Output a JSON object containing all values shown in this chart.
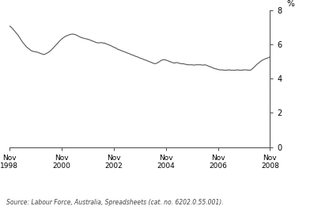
{
  "title": "",
  "ylabel": "%",
  "ylim": [
    0,
    8
  ],
  "yticks": [
    0,
    2,
    4,
    6,
    8
  ],
  "source_text": "Source: Labour Force, Australia, Spreadsheets (cat. no. 6202.0.55.001).",
  "line_color": "#555555",
  "line_width": 0.8,
  "background_color": "#ffffff",
  "x_tick_years": [
    1998,
    2000,
    2002,
    2004,
    2006,
    2008
  ],
  "data": [
    [
      1998,
      11,
      7.1
    ],
    [
      1998,
      12,
      7.0
    ],
    [
      1999,
      1,
      6.85
    ],
    [
      1999,
      2,
      6.7
    ],
    [
      1999,
      3,
      6.55
    ],
    [
      1999,
      4,
      6.35
    ],
    [
      1999,
      5,
      6.15
    ],
    [
      1999,
      6,
      6.0
    ],
    [
      1999,
      7,
      5.85
    ],
    [
      1999,
      8,
      5.75
    ],
    [
      1999,
      9,
      5.65
    ],
    [
      1999,
      10,
      5.6
    ],
    [
      1999,
      11,
      5.58
    ],
    [
      1999,
      12,
      5.55
    ],
    [
      2000,
      1,
      5.5
    ],
    [
      2000,
      2,
      5.45
    ],
    [
      2000,
      3,
      5.42
    ],
    [
      2000,
      4,
      5.48
    ],
    [
      2000,
      5,
      5.55
    ],
    [
      2000,
      6,
      5.65
    ],
    [
      2000,
      7,
      5.78
    ],
    [
      2000,
      8,
      5.92
    ],
    [
      2000,
      9,
      6.05
    ],
    [
      2000,
      10,
      6.2
    ],
    [
      2000,
      11,
      6.32
    ],
    [
      2000,
      12,
      6.42
    ],
    [
      2001,
      1,
      6.5
    ],
    [
      2001,
      2,
      6.55
    ],
    [
      2001,
      3,
      6.6
    ],
    [
      2001,
      4,
      6.62
    ],
    [
      2001,
      5,
      6.6
    ],
    [
      2001,
      6,
      6.55
    ],
    [
      2001,
      7,
      6.48
    ],
    [
      2001,
      8,
      6.42
    ],
    [
      2001,
      9,
      6.38
    ],
    [
      2001,
      10,
      6.35
    ],
    [
      2001,
      11,
      6.32
    ],
    [
      2001,
      12,
      6.28
    ],
    [
      2002,
      1,
      6.22
    ],
    [
      2002,
      2,
      6.18
    ],
    [
      2002,
      3,
      6.12
    ],
    [
      2002,
      4,
      6.1
    ],
    [
      2002,
      5,
      6.12
    ],
    [
      2002,
      6,
      6.1
    ],
    [
      2002,
      7,
      6.08
    ],
    [
      2002,
      8,
      6.02
    ],
    [
      2002,
      9,
      5.98
    ],
    [
      2002,
      10,
      5.92
    ],
    [
      2002,
      11,
      5.85
    ],
    [
      2002,
      12,
      5.8
    ],
    [
      2003,
      1,
      5.72
    ],
    [
      2003,
      2,
      5.68
    ],
    [
      2003,
      3,
      5.62
    ],
    [
      2003,
      4,
      5.58
    ],
    [
      2003,
      5,
      5.52
    ],
    [
      2003,
      6,
      5.48
    ],
    [
      2003,
      7,
      5.42
    ],
    [
      2003,
      8,
      5.38
    ],
    [
      2003,
      9,
      5.32
    ],
    [
      2003,
      10,
      5.28
    ],
    [
      2003,
      11,
      5.22
    ],
    [
      2003,
      12,
      5.18
    ],
    [
      2004,
      1,
      5.12
    ],
    [
      2004,
      2,
      5.08
    ],
    [
      2004,
      3,
      5.02
    ],
    [
      2004,
      4,
      4.98
    ],
    [
      2004,
      5,
      4.92
    ],
    [
      2004,
      6,
      4.88
    ],
    [
      2004,
      7,
      4.92
    ],
    [
      2004,
      8,
      5.0
    ],
    [
      2004,
      9,
      5.08
    ],
    [
      2004,
      10,
      5.12
    ],
    [
      2004,
      11,
      5.1
    ],
    [
      2004,
      12,
      5.05
    ],
    [
      2005,
      1,
      5.0
    ],
    [
      2005,
      2,
      4.95
    ],
    [
      2005,
      3,
      4.92
    ],
    [
      2005,
      4,
      4.95
    ],
    [
      2005,
      5,
      4.92
    ],
    [
      2005,
      6,
      4.88
    ],
    [
      2005,
      7,
      4.88
    ],
    [
      2005,
      8,
      4.85
    ],
    [
      2005,
      9,
      4.82
    ],
    [
      2005,
      10,
      4.82
    ],
    [
      2005,
      11,
      4.82
    ],
    [
      2005,
      12,
      4.8
    ],
    [
      2006,
      1,
      4.82
    ],
    [
      2006,
      2,
      4.82
    ],
    [
      2006,
      3,
      4.82
    ],
    [
      2006,
      4,
      4.8
    ],
    [
      2006,
      5,
      4.82
    ],
    [
      2006,
      6,
      4.78
    ],
    [
      2006,
      7,
      4.72
    ],
    [
      2006,
      8,
      4.68
    ],
    [
      2006,
      9,
      4.62
    ],
    [
      2006,
      10,
      4.58
    ],
    [
      2006,
      11,
      4.55
    ],
    [
      2006,
      12,
      4.52
    ],
    [
      2007,
      1,
      4.52
    ],
    [
      2007,
      2,
      4.5
    ],
    [
      2007,
      3,
      4.5
    ],
    [
      2007,
      4,
      4.52
    ],
    [
      2007,
      5,
      4.5
    ],
    [
      2007,
      6,
      4.5
    ],
    [
      2007,
      7,
      4.5
    ],
    [
      2007,
      8,
      4.52
    ],
    [
      2007,
      9,
      4.5
    ],
    [
      2007,
      10,
      4.5
    ],
    [
      2007,
      11,
      4.52
    ],
    [
      2007,
      12,
      4.52
    ],
    [
      2008,
      1,
      4.5
    ],
    [
      2008,
      2,
      4.5
    ],
    [
      2008,
      3,
      4.6
    ],
    [
      2008,
      4,
      4.72
    ],
    [
      2008,
      5,
      4.85
    ],
    [
      2008,
      6,
      4.95
    ],
    [
      2008,
      7,
      5.05
    ],
    [
      2008,
      8,
      5.12
    ],
    [
      2008,
      9,
      5.18
    ],
    [
      2008,
      10,
      5.22
    ],
    [
      2008,
      11,
      5.28
    ]
  ]
}
